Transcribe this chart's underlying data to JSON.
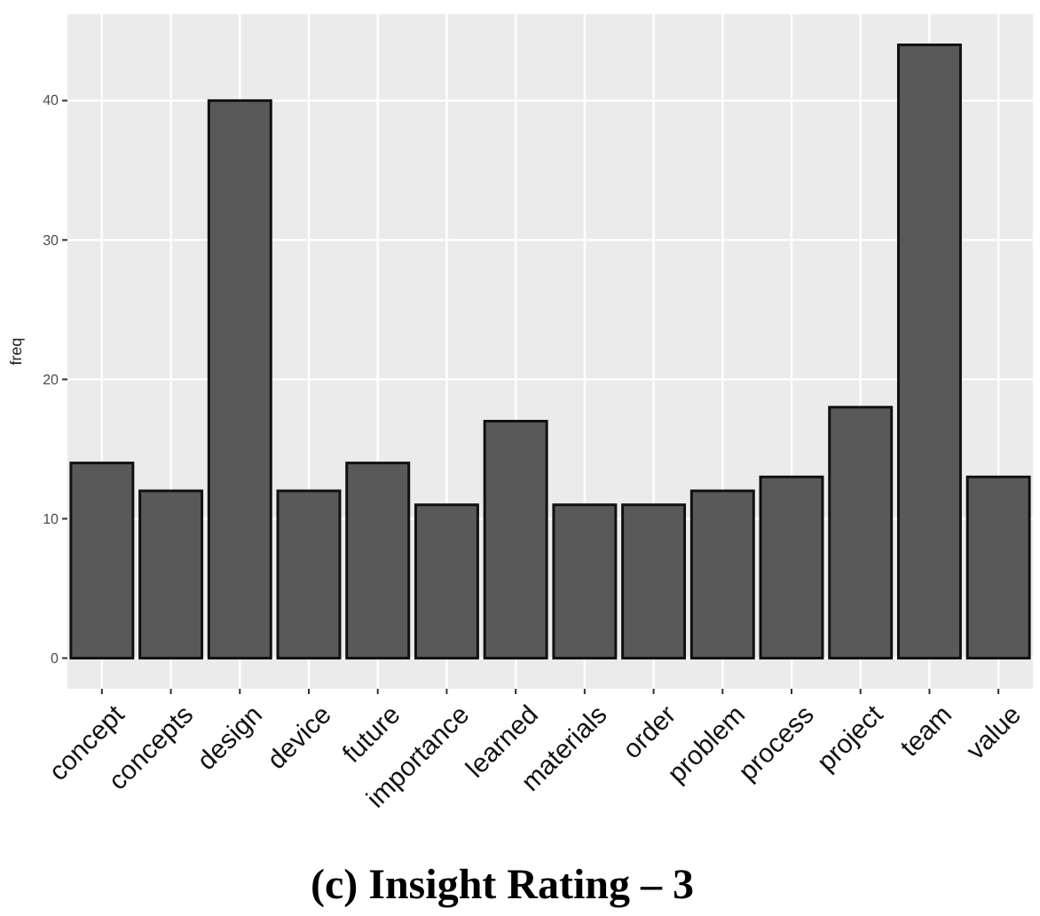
{
  "chart_data": {
    "type": "bar",
    "title": "(c) Insight Rating – 3",
    "ylabel": "freq",
    "categories": [
      "concept",
      "concepts",
      "design",
      "device",
      "future",
      "importance",
      "learned",
      "materials",
      "order",
      "problem",
      "process",
      "project",
      "team",
      "value"
    ],
    "values": [
      14,
      12,
      40,
      12,
      14,
      11,
      17,
      11,
      11,
      12,
      13,
      18,
      44,
      13
    ],
    "color": "#595959",
    "ylim": [
      -2.2,
      46.2
    ],
    "yticks": [
      0,
      10,
      20,
      30,
      40
    ],
    "grid": true
  }
}
